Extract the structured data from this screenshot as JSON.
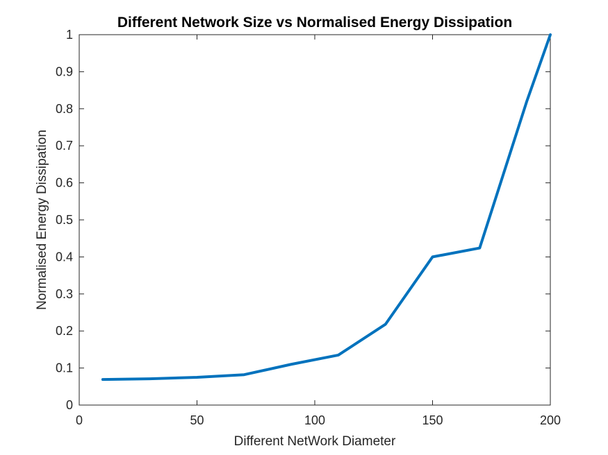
{
  "colors": {
    "series": "#0072BD",
    "axis": "#262626",
    "background": "#ffffff"
  },
  "chart_data": {
    "type": "line",
    "title": "Different Network Size vs Normalised Energy Dissipation",
    "xlabel": "Different NetWork Diameter",
    "ylabel": "Normalised Energy Dissipation",
    "xlim": [
      0,
      200
    ],
    "ylim": [
      0,
      1
    ],
    "xticks": [
      0,
      50,
      100,
      150,
      200
    ],
    "yticks": [
      0,
      0.1,
      0.2,
      0.3,
      0.4,
      0.5,
      0.6,
      0.7,
      0.8,
      0.9,
      1
    ],
    "grid": false,
    "legend": false,
    "series": [
      {
        "x": [
          10,
          30,
          50,
          70,
          90,
          110,
          130,
          150,
          170,
          190,
          200
        ],
        "y": [
          0.069,
          0.071,
          0.075,
          0.082,
          0.11,
          0.135,
          0.218,
          0.4,
          0.424,
          0.82,
          1.0
        ]
      }
    ]
  }
}
